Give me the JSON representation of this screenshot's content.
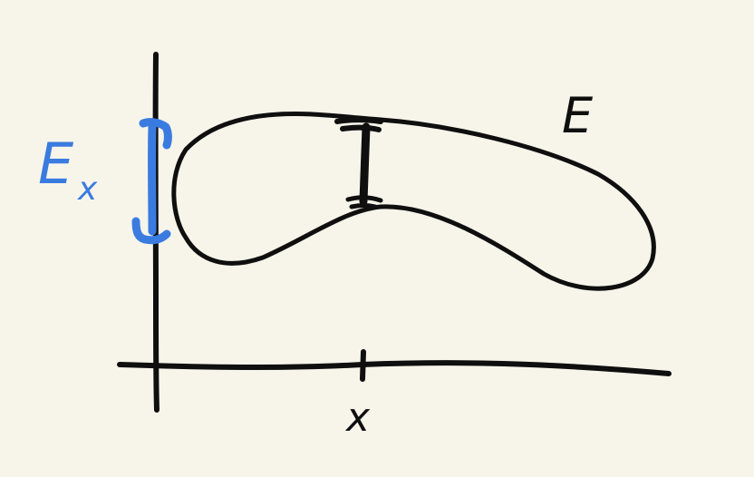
{
  "colors": {
    "background": "#f7f5ea",
    "ink": "#0f0f0f",
    "accent": "#3a7be0"
  },
  "labels": {
    "set_name": "E",
    "x_label": "x",
    "section_base": "E",
    "section_sub": "x"
  }
}
